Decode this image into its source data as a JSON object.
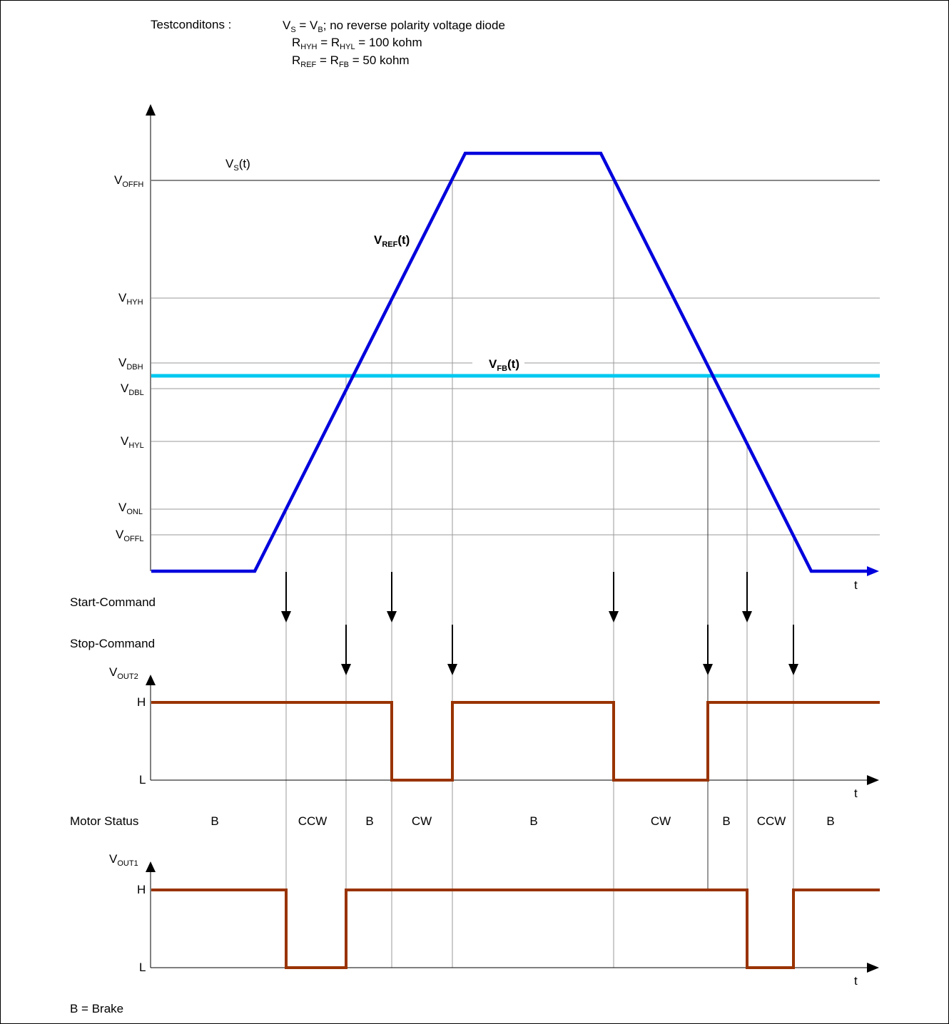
{
  "test_conditions": {
    "label": "Testconditons :",
    "line1": {
      "a": "V",
      "a_sub": "S",
      "b": " = V",
      "b_sub": "B",
      "c": "; no reverse polarity voltage diode"
    },
    "line2": {
      "a": "R",
      "a_sub": "HYH",
      "b": " = R",
      "b_sub": "HYL",
      "c": " = 100 kohm"
    },
    "line3": {
      "a": "R",
      "a_sub": "REF",
      "b": " = R",
      "b_sub": "FB",
      "c": " = 50 kohm"
    }
  },
  "levels": [
    {
      "id": "voffh",
      "main": "V",
      "sub": "OFFH"
    },
    {
      "id": "vhyh",
      "main": "V",
      "sub": "HYH"
    },
    {
      "id": "vdbh",
      "main": "V",
      "sub": "DBH"
    },
    {
      "id": "vdbl",
      "main": "V",
      "sub": "DBL"
    },
    {
      "id": "vhyl",
      "main": "V",
      "sub": "HYL"
    },
    {
      "id": "vonl",
      "main": "V",
      "sub": "ONL"
    },
    {
      "id": "voffl",
      "main": "V",
      "sub": "OFFL"
    }
  ],
  "signals": {
    "vs": {
      "main": "V",
      "sub": "S",
      "suffix": "(t)"
    },
    "vref": {
      "main": "V",
      "sub": "REF",
      "suffix": "(t)",
      "color": "#0000dd"
    },
    "vfb": {
      "main": "V",
      "sub": "FB",
      "suffix": "(t)",
      "color": "#00c8f0"
    }
  },
  "axis_t": "t",
  "commands": {
    "start": "Start-Command",
    "stop": "Stop-Command"
  },
  "vout2": {
    "main": "V",
    "sub": "OUT2",
    "high": "H",
    "low": "L",
    "color": "#993300"
  },
  "vout1": {
    "main": "V",
    "sub": "OUT1",
    "high": "H",
    "low": "L",
    "color": "#993300"
  },
  "motor_status": {
    "label": "Motor Status",
    "states": [
      "B",
      "CCW",
      "B",
      "CW",
      "B",
      "CW",
      "B",
      "CCW",
      "B"
    ]
  },
  "legend": "B = Brake"
}
